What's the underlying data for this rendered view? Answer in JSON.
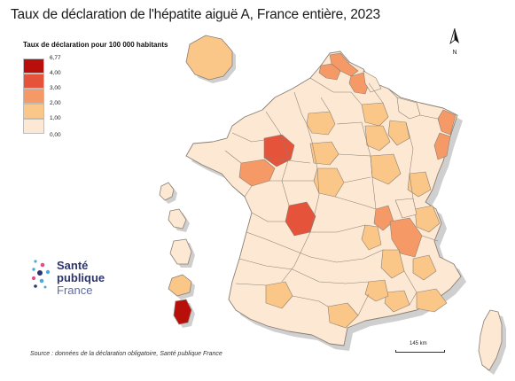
{
  "title": "Taux de déclaration de l'hépatite aiguë A, France entière, 2023",
  "legend": {
    "title": "Taux de déclaration pour 100 000 habitants",
    "ticks": [
      "6,77",
      "4,00",
      "3,00",
      "2,00",
      "1,00",
      "0,00"
    ],
    "classes": [
      {
        "range": "4,00 – 6,77",
        "color": "#b80f0a"
      },
      {
        "range": "3,00 – 4,00",
        "color": "#e5533a"
      },
      {
        "range": "2,00 – 3,00",
        "color": "#f59a67"
      },
      {
        "range": "1,00 – 2,00",
        "color": "#fbc788"
      },
      {
        "range": "0,00 – 1,00",
        "color": "#fde9d3"
      }
    ]
  },
  "north_arrow": {
    "letter": "N"
  },
  "logo": {
    "line1": "Santé",
    "line2": "publique",
    "line3": "France"
  },
  "source": "Source : données de la déclaration obligatoire, Santé publique France",
  "scale": {
    "label": "145 km"
  },
  "map": {
    "border_color": "#8a7f74",
    "shadow_color": "#cfcfcf"
  }
}
